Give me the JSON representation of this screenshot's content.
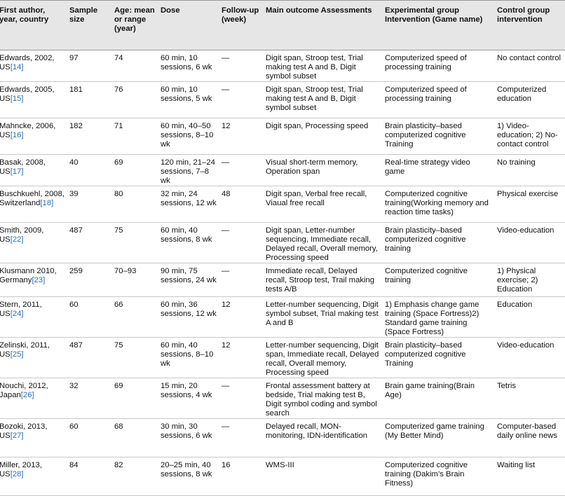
{
  "table": {
    "header": [
      "First author, year, country",
      "Sample size",
      "Age: mean or range (year)",
      "Dose",
      "Follow-up (week)",
      "Main outcome Assessments",
      "Experimental group Intervention (Game name)",
      "Control group intervention"
    ],
    "rows": [
      [
        {
          "text": "Edwards, 2002, US",
          "ref": "[14]"
        },
        97,
        74,
        "60 min, 10 sessions, 6 wk",
        "—",
        "Digit span, Stroop test, Trial making test A and B, Digit symbol subset",
        "Computerized speed of processing training",
        "No contact control"
      ],
      [
        {
          "text": "Edwards, 2005, US",
          "ref": "[15]"
        },
        181,
        76,
        "60 min, 10 sessions, 5 wk",
        "—",
        "Digit span, Stroop test, Trial making test A and B, Digit symbol subset",
        "Computerized speed of processing training",
        "Computerized education"
      ],
      [
        {
          "text": "Mahncke, 2006, US",
          "ref": "[16]"
        },
        182,
        71,
        "60 min, 40–50 sessions, 8–10 wk",
        12,
        "Digit span, Processing speed",
        "Brain plasticity–based computerized cognitive Training",
        "1) Video-education; 2) No-contact control"
      ],
      [
        {
          "text": "Basak, 2008, US",
          "ref": "[17]"
        },
        40,
        69,
        "120 min, 21–24 sessions, 7–8 wk",
        "—",
        "Visual short-term memory, Operation span",
        "Real-time strategy video game",
        "No training"
      ],
      [
        {
          "text": "Buschkuehl, 2008, Switzerland",
          "ref": "[18]"
        },
        39,
        80,
        "32 min, 24 sessions, 12 wk",
        48,
        "Digit span, Verbal free recall, Viaual free recall",
        "Computerized cognitive training(Working memory and reaction time tasks)",
        "Physical exercise"
      ],
      [
        {
          "text": "Smith, 2009, US",
          "ref": "[22]"
        },
        487,
        75,
        "60 min, 40 sessions, 8 wk",
        "—",
        "Digit span, Letter-number sequencing, Immediate recall, Delayed recall, Overall memory, Processing speed",
        "Brain plasticity–based computerized cognitive training",
        "Video-education"
      ],
      [
        {
          "text": "Klusmann 2010, Germany",
          "ref": "[23]"
        },
        259,
        "70–93",
        "90 min, 75 sessions, 24 wk",
        "—",
        "Immediate recall, Delayed recall, Stroop test, Trail making tests A/B",
        "Computerized cognitive training",
        "1) Physical exercise; 2) Education"
      ],
      [
        {
          "text": "Stern, 2011, US",
          "ref": "[24]"
        },
        60,
        66,
        "60 min, 36 sessions, 12 wk",
        12,
        "Letter-number sequencing, Digit symbol subset, Trial making test A and B",
        "1) Emphasis change game training (Space Fortress)2) Standard game training (Space Fortress)",
        "Education"
      ],
      [
        {
          "text": "Zelinski, 2011, US",
          "ref": "[25]"
        },
        487,
        75,
        "60 min, 40 sessions, 8–10 wk",
        12,
        "Letter-number sequencing, Digit span, Immediate recall, Delayed recall, Overall memory, Processing speed",
        "Brain plasticity–based computerized cognitive Training",
        "Video-education"
      ],
      [
        {
          "text": "Nouchi, 2012, Japan",
          "ref": "[26]"
        },
        32,
        69,
        "15 min, 20 sessions, 4 wk",
        "—",
        "Frontal assessment battery at bedside, Trial making test B, Digit symbol coding and symbol search",
        "Brain game training(Brain Age)",
        "Tetris"
      ],
      [
        {
          "text": "Bozoki, 2013, US",
          "ref": "[27]"
        },
        60,
        68,
        "30 min, 30 sessions, 6 wk",
        "—",
        "Delayed recall, MON-monitoring, IDN-identification",
        "Computerized game training (My Better Mind)",
        "Computer-based daily online news"
      ],
      [
        {
          "text": "Miller, 2013, US",
          "ref": "[28]"
        },
        84,
        82,
        "20–25 min, 40 sessions, 8 wk",
        16,
        "WMS-III",
        "Computerized cognitive training (Dakim’s Brain Fitness)",
        "Waiting list"
      ]
    ]
  }
}
